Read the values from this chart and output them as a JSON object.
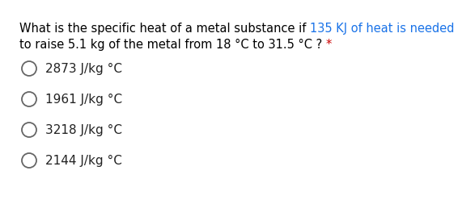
{
  "q_black1": "What is the specific heat of a metal substance if ",
  "q_blue1": "135 KJ of heat is needed",
  "q_black2": "to raise 5.1 kg of the metal from 18 °C to 31.5 °C ? ",
  "q_star": "*",
  "question_color": "#000000",
  "highlight_color": "#1a73e8",
  "star_color": "#cc0000",
  "options": [
    "2873 J/kg °C",
    "1961 J/kg °C",
    "3218 J/kg °C",
    "2144 J/kg °C"
  ],
  "option_color": "#222222",
  "background_color": "#ffffff",
  "font_size_question": 10.5,
  "font_size_options": 11.0,
  "circle_color": "#666666"
}
